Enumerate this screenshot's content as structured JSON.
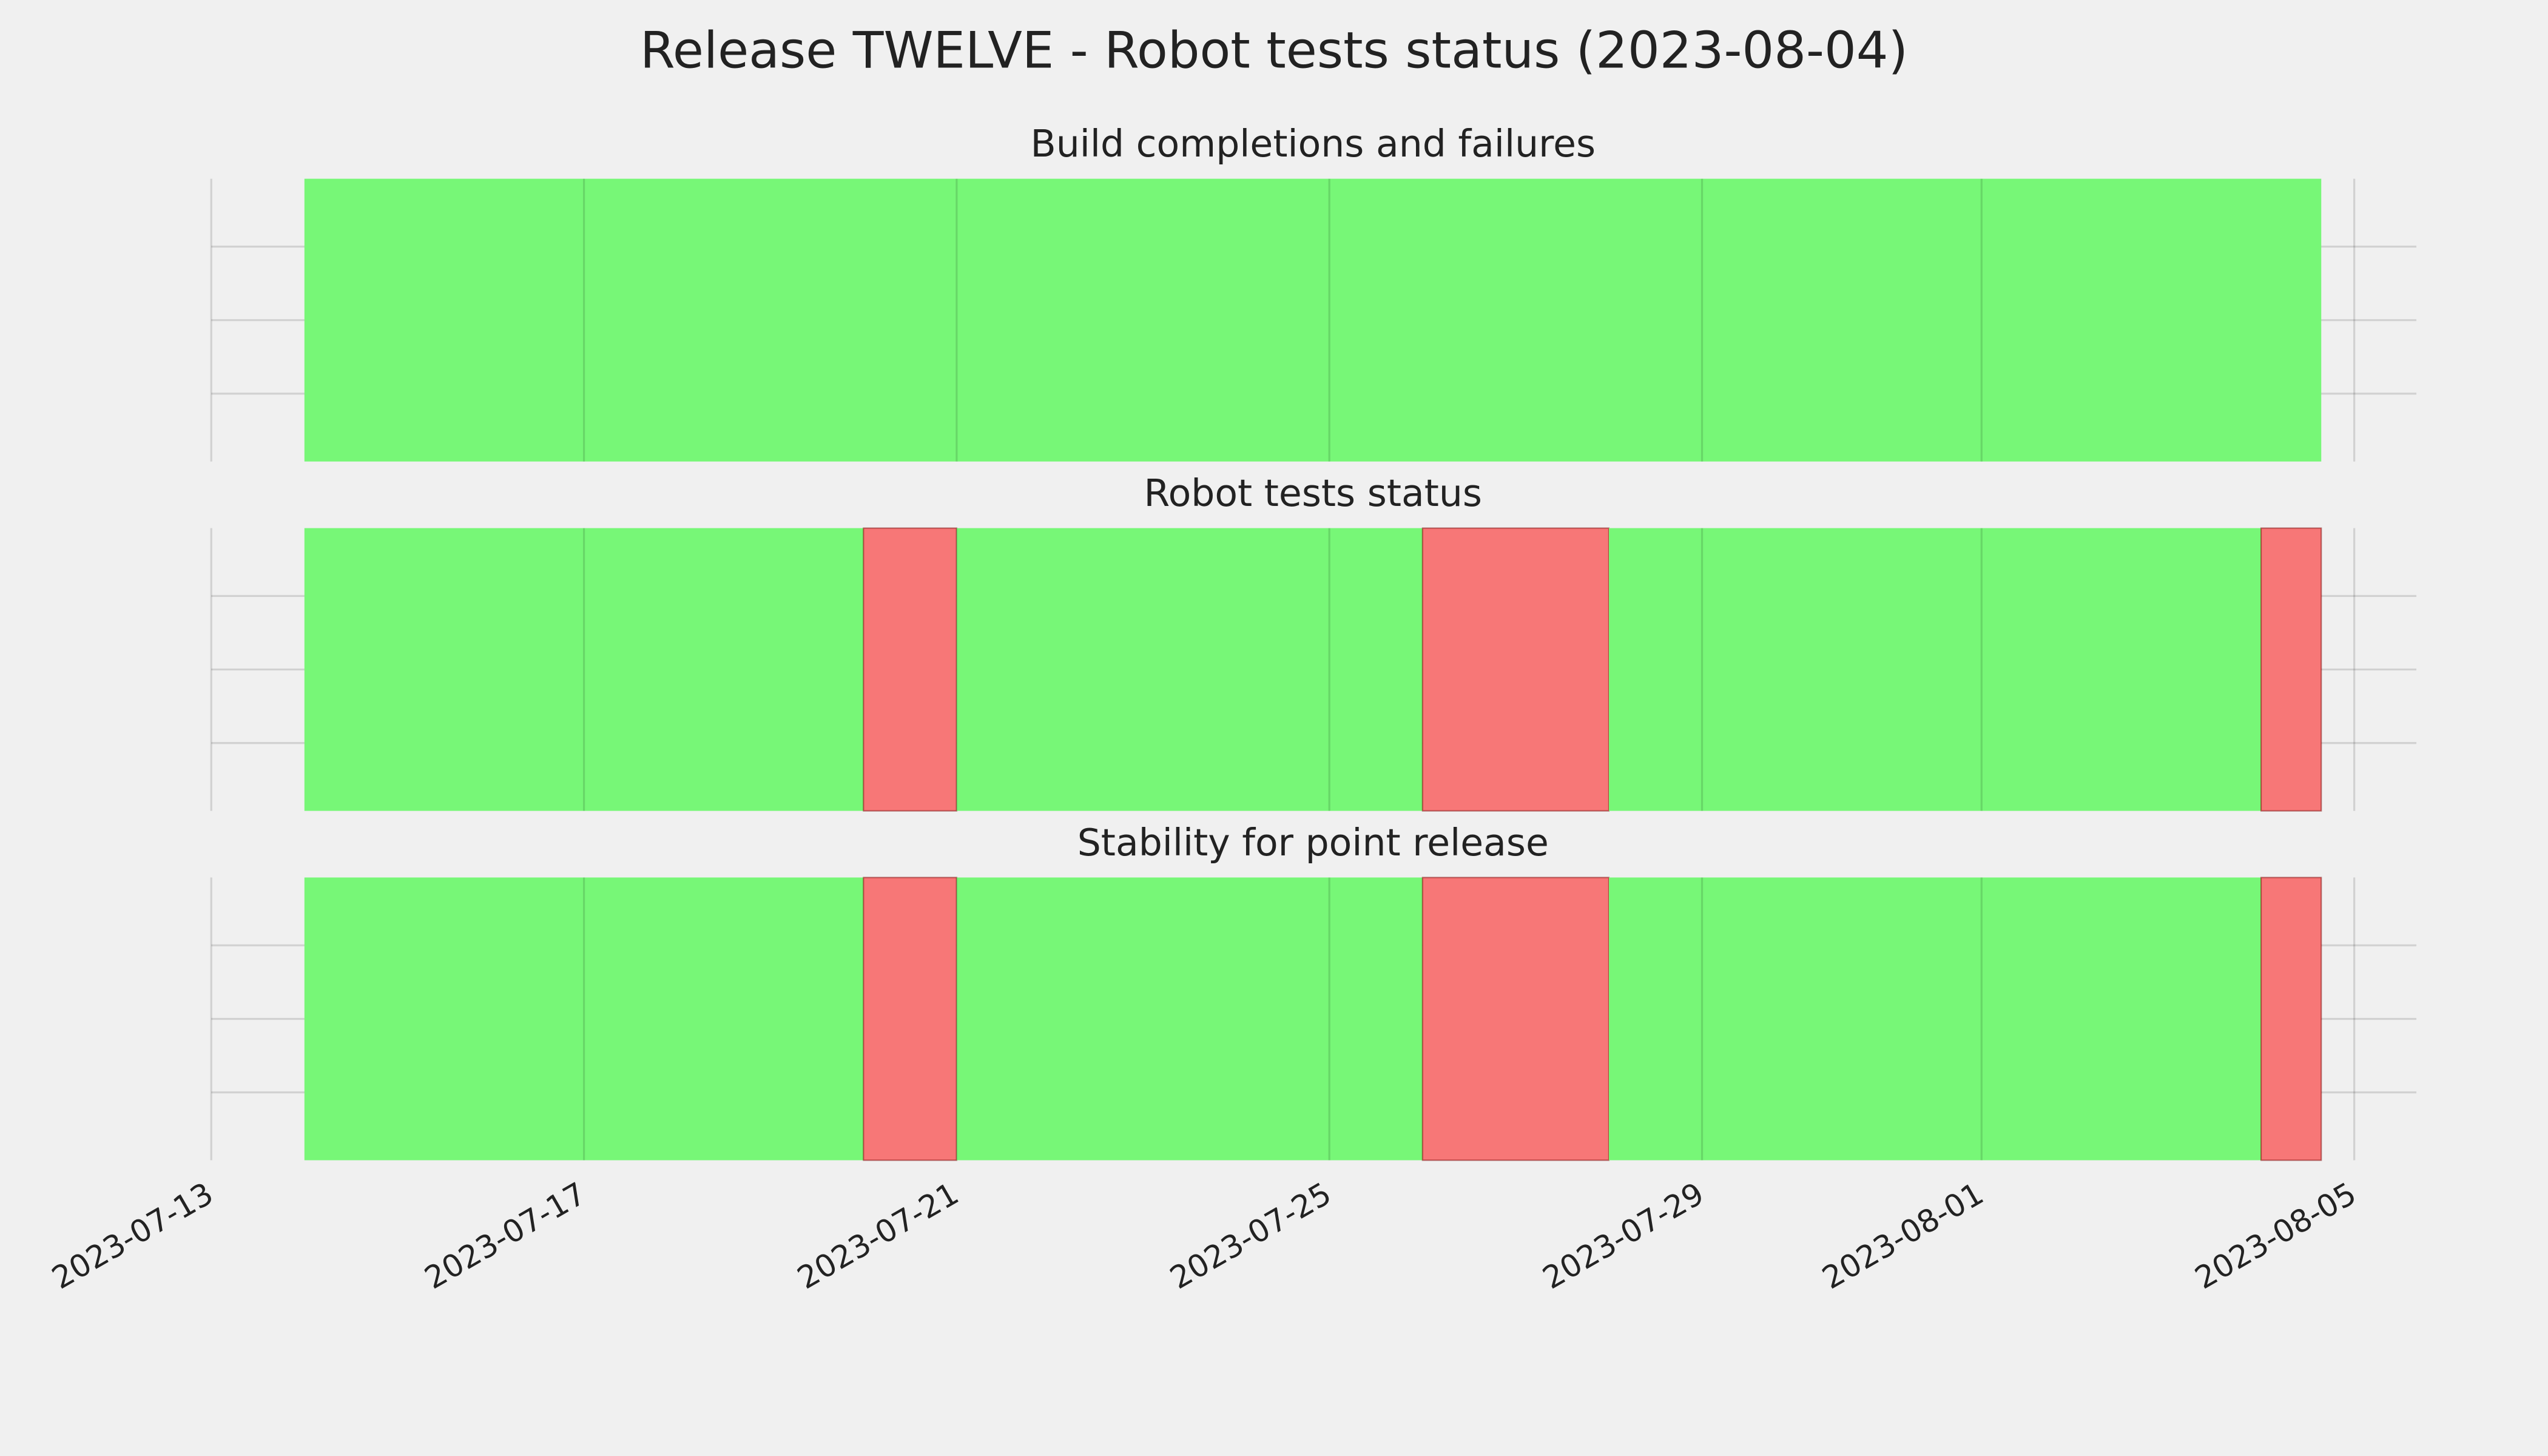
{
  "title": "Release TWELVE - Robot tests status (2023-08-04)",
  "chart_data": [
    {
      "type": "timeline",
      "title": "Build completions and failures",
      "x": [
        "2023-07-14",
        "2023-08-04T15:30"
      ],
      "colors": [
        "#77f777"
      ],
      "xlim": [
        "2023-07-13",
        "2023-08-05T16:00"
      ],
      "xticks": [
        "2023-07-13",
        "2023-07-17",
        "2023-07-21",
        "2023-07-25",
        "2023-07-29",
        "2023-08-01",
        "2023-08-05"
      ],
      "grid": true
    },
    {
      "type": "timeline",
      "title": "Robot tests status",
      "x": [
        "2023-07-14",
        "2023-07-20",
        "2023-07-21",
        "2023-07-26",
        "2023-07-28",
        "2023-08-04",
        "2023-08-04T15:30"
      ],
      "colors": [
        "#77f777",
        "#f77777",
        "#77f777",
        "#f77777",
        "#77f777",
        "#f77777"
      ],
      "xlim": [
        "2023-07-13",
        "2023-08-05T16:00"
      ],
      "xticks": [
        "2023-07-13",
        "2023-07-17",
        "2023-07-21",
        "2023-07-25",
        "2023-07-29",
        "2023-08-01",
        "2023-08-05"
      ],
      "grid": true
    },
    {
      "type": "timeline",
      "title": "Stability for point release",
      "x": [
        "2023-07-14",
        "2023-07-20",
        "2023-07-21",
        "2023-07-26",
        "2023-07-28",
        "2023-08-04",
        "2023-08-04T15:30"
      ],
      "colors": [
        "#77f777",
        "#f77777",
        "#77f777",
        "#f77777",
        "#77f777",
        "#f77777"
      ],
      "xlim": [
        "2023-07-13",
        "2023-08-05T16:00"
      ],
      "xticks": [
        "2023-07-13",
        "2023-07-17",
        "2023-07-21",
        "2023-07-25",
        "2023-07-29",
        "2023-08-01",
        "2023-08-05"
      ],
      "grid": true
    }
  ]
}
